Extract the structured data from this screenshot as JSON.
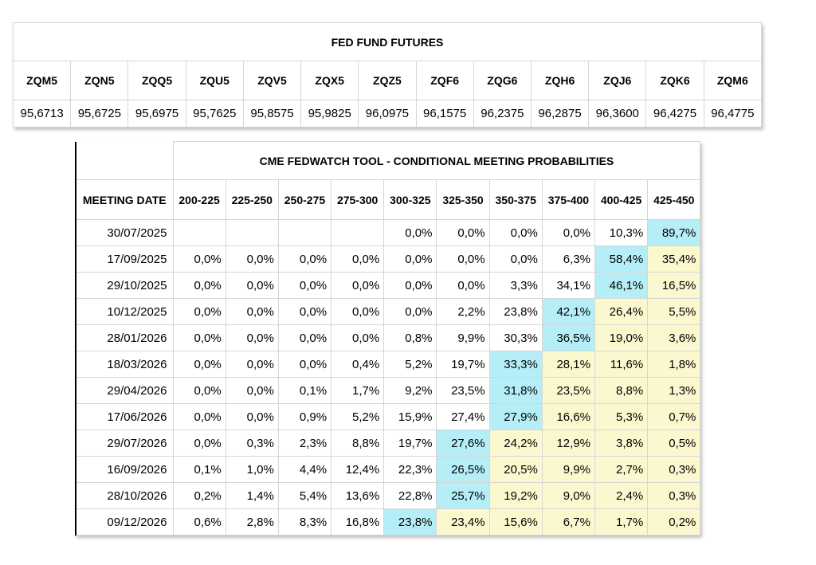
{
  "futures": {
    "title": "FED FUND FUTURES",
    "contracts": [
      "ZQM5",
      "ZQN5",
      "ZQQ5",
      "ZQU5",
      "ZQV5",
      "ZQX5",
      "ZQZ5",
      "ZQF6",
      "ZQG6",
      "ZQH6",
      "ZQJ6",
      "ZQK6",
      "ZQM6"
    ],
    "prices": [
      "95,6713",
      "95,6725",
      "95,6975",
      "95,7625",
      "95,8575",
      "95,9825",
      "96,0975",
      "96,1575",
      "96,2375",
      "96,2875",
      "96,3600",
      "96,4275",
      "96,4775"
    ]
  },
  "fedwatch": {
    "title": "CME FEDWATCH TOOL - CONDITIONAL MEETING PROBABILITIES",
    "date_header": "MEETING DATE",
    "ranges": [
      "200-225",
      "225-250",
      "250-275",
      "275-300",
      "300-325",
      "325-350",
      "350-375",
      "375-400",
      "400-425",
      "425-450"
    ],
    "colors": {
      "highlight_max": "#b5eef6",
      "highlight_after": "#fbf8cf"
    },
    "rows": [
      {
        "date": "30/07/2025",
        "values": [
          "",
          "",
          "",
          "",
          "0,0%",
          "0,0%",
          "0,0%",
          "0,0%",
          "10,3%",
          "89,7%"
        ],
        "max_index": 9
      },
      {
        "date": "17/09/2025",
        "values": [
          "0,0%",
          "0,0%",
          "0,0%",
          "0,0%",
          "0,0%",
          "0,0%",
          "0,0%",
          "6,3%",
          "58,4%",
          "35,4%"
        ],
        "max_index": 8
      },
      {
        "date": "29/10/2025",
        "values": [
          "0,0%",
          "0,0%",
          "0,0%",
          "0,0%",
          "0,0%",
          "0,0%",
          "3,3%",
          "34,1%",
          "46,1%",
          "16,5%"
        ],
        "max_index": 8
      },
      {
        "date": "10/12/2025",
        "values": [
          "0,0%",
          "0,0%",
          "0,0%",
          "0,0%",
          "0,0%",
          "2,2%",
          "23,8%",
          "42,1%",
          "26,4%",
          "5,5%"
        ],
        "max_index": 7
      },
      {
        "date": "28/01/2026",
        "values": [
          "0,0%",
          "0,0%",
          "0,0%",
          "0,0%",
          "0,8%",
          "9,9%",
          "30,3%",
          "36,5%",
          "19,0%",
          "3,6%"
        ],
        "max_index": 7
      },
      {
        "date": "18/03/2026",
        "values": [
          "0,0%",
          "0,0%",
          "0,0%",
          "0,4%",
          "5,2%",
          "19,7%",
          "33,3%",
          "28,1%",
          "11,6%",
          "1,8%"
        ],
        "max_index": 6
      },
      {
        "date": "29/04/2026",
        "values": [
          "0,0%",
          "0,0%",
          "0,1%",
          "1,7%",
          "9,2%",
          "23,5%",
          "31,8%",
          "23,5%",
          "8,8%",
          "1,3%"
        ],
        "max_index": 6
      },
      {
        "date": "17/06/2026",
        "values": [
          "0,0%",
          "0,0%",
          "0,9%",
          "5,2%",
          "15,9%",
          "27,4%",
          "27,9%",
          "16,6%",
          "5,3%",
          "0,7%"
        ],
        "max_index": 6
      },
      {
        "date": "29/07/2026",
        "values": [
          "0,0%",
          "0,3%",
          "2,3%",
          "8,8%",
          "19,7%",
          "27,6%",
          "24,2%",
          "12,9%",
          "3,8%",
          "0,5%"
        ],
        "max_index": 5
      },
      {
        "date": "16/09/2026",
        "values": [
          "0,1%",
          "1,0%",
          "4,4%",
          "12,4%",
          "22,3%",
          "26,5%",
          "20,5%",
          "9,9%",
          "2,7%",
          "0,3%"
        ],
        "max_index": 5
      },
      {
        "date": "28/10/2026",
        "values": [
          "0,2%",
          "1,4%",
          "5,4%",
          "13,6%",
          "22,8%",
          "25,7%",
          "19,2%",
          "9,0%",
          "2,4%",
          "0,3%"
        ],
        "max_index": 5
      },
      {
        "date": "09/12/2026",
        "values": [
          "0,6%",
          "2,8%",
          "8,3%",
          "16,8%",
          "23,8%",
          "23,4%",
          "15,6%",
          "6,7%",
          "1,7%",
          "0,2%"
        ],
        "max_index": 4
      }
    ]
  }
}
